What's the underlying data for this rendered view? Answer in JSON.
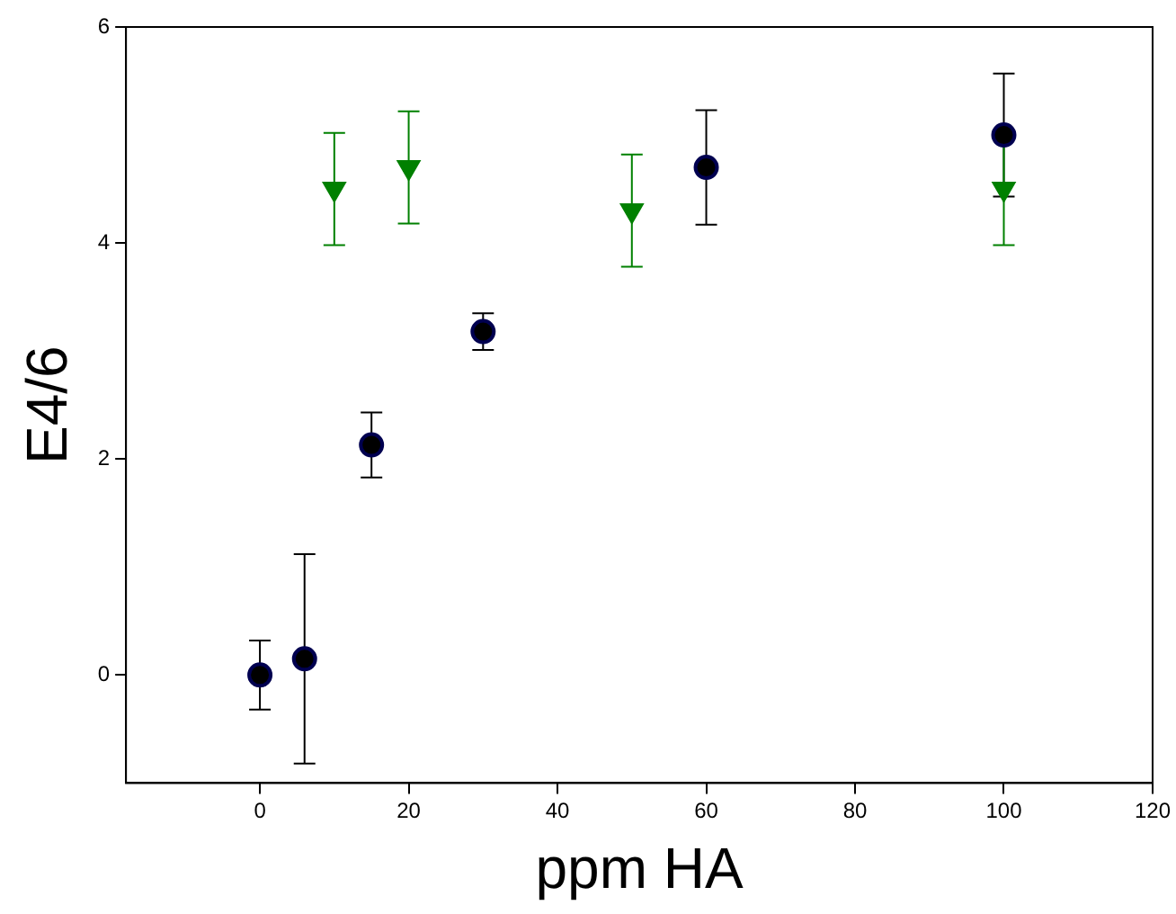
{
  "chart_data": {
    "type": "scatter",
    "xlabel": "ppm HA",
    "ylabel": "E4/6",
    "xlim": [
      -18,
      120
    ],
    "ylim": [
      -1,
      6
    ],
    "xticks": [
      0,
      20,
      40,
      60,
      80,
      100,
      120
    ],
    "yticks": [
      0,
      2,
      4,
      6
    ],
    "grid": false,
    "legend": false,
    "series": [
      {
        "color": "#000050",
        "marker": "circle",
        "x": [
          0,
          6,
          15,
          30,
          60,
          100
        ],
        "values": [
          0,
          0.15,
          2.13,
          3.18,
          4.7,
          5.0
        ],
        "errors": [
          0.32,
          0.97,
          0.3,
          0.17,
          0.53,
          0.57
        ]
      },
      {
        "color": "#008000",
        "marker": "triangle",
        "x": [
          10,
          20,
          50,
          100
        ],
        "values": [
          4.5,
          4.7,
          4.3,
          4.5
        ],
        "errors": [
          0.52,
          0.52,
          0.52,
          0.52
        ]
      }
    ]
  }
}
